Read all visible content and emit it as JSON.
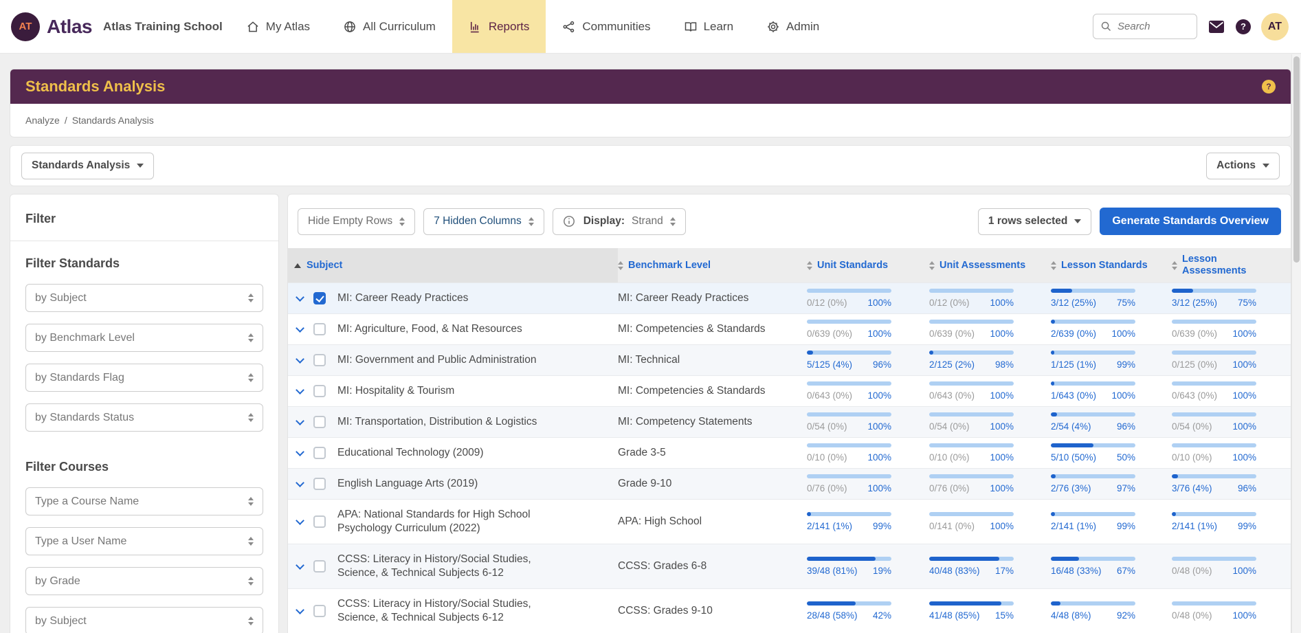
{
  "navbar": {
    "logo_text": "AT",
    "brand": "Atlas",
    "school": "Atlas Training School",
    "items": [
      {
        "label": "My Atlas",
        "icon": "home-icon",
        "active": false
      },
      {
        "label": "All Curriculum",
        "icon": "globe-icon",
        "active": false
      },
      {
        "label": "Reports",
        "icon": "chart-icon",
        "active": true
      },
      {
        "label": "Communities",
        "icon": "network-icon",
        "active": false
      },
      {
        "label": "Learn",
        "icon": "book-icon",
        "active": false
      },
      {
        "label": "Admin",
        "icon": "gear-icon",
        "active": false
      }
    ],
    "search_placeholder": "Search",
    "help_badge": "?",
    "avatar_text": "AT"
  },
  "header": {
    "title": "Standards Analysis",
    "help_icon": "?"
  },
  "breadcrumb": {
    "parts": [
      "Analyze",
      "Standards Analysis"
    ],
    "separator": "/"
  },
  "controls": {
    "report_selector_label": "Standards Analysis",
    "actions_label": "Actions"
  },
  "sidebar": {
    "title": "Filter",
    "sections": [
      {
        "heading": "Filter Standards",
        "filters": [
          "by Subject",
          "by Benchmark Level",
          "by Standards Flag",
          "by Standards Status"
        ]
      },
      {
        "heading": "Filter Courses",
        "filters": [
          "Type a Course Name",
          "Type a User Name",
          "by Grade",
          "by Subject"
        ]
      }
    ]
  },
  "toolbar": {
    "hide_empty_rows_label": "Hide Empty Rows",
    "hidden_columns_label": "7 Hidden Columns",
    "display_label": "Display:",
    "display_value": "Strand",
    "rows_selected_label": "1 rows selected",
    "generate_button_label": "Generate Standards Overview"
  },
  "table": {
    "columns": [
      {
        "label": "Subject",
        "sort": "asc"
      },
      {
        "label": "Benchmark Level",
        "sort": "both"
      },
      {
        "label": "Unit Standards",
        "sort": "both"
      },
      {
        "label": "Unit Assessments",
        "sort": "both"
      },
      {
        "label": "Lesson Standards",
        "sort": "both"
      },
      {
        "label": "Lesson Assessments",
        "sort": "both"
      }
    ],
    "rows": [
      {
        "subject": "MI: Career Ready Practices",
        "benchmark": "MI: Career Ready Practices",
        "checked": true,
        "metrics": [
          {
            "text": "0/12 (0%)",
            "pct": "100%",
            "fill": 0,
            "muted": true
          },
          {
            "text": "0/12 (0%)",
            "pct": "100%",
            "fill": 0,
            "muted": true
          },
          {
            "text": "3/12 (25%)",
            "pct": "75%",
            "fill": 25,
            "muted": false
          },
          {
            "text": "3/12 (25%)",
            "pct": "75%",
            "fill": 25,
            "muted": false
          }
        ]
      },
      {
        "subject": "MI: Agriculture, Food, & Nat Resources",
        "benchmark": "MI: Competencies & Standards",
        "checked": false,
        "metrics": [
          {
            "text": "0/639 (0%)",
            "pct": "100%",
            "fill": 0,
            "muted": true
          },
          {
            "text": "0/639 (0%)",
            "pct": "100%",
            "fill": 0,
            "muted": true
          },
          {
            "text": "2/639 (0%)",
            "pct": "100%",
            "fill": 5,
            "muted": false
          },
          {
            "text": "0/639 (0%)",
            "pct": "100%",
            "fill": 0,
            "muted": true
          }
        ]
      },
      {
        "subject": "MI: Government and Public Administration",
        "benchmark": "MI: Technical",
        "checked": false,
        "metrics": [
          {
            "text": "5/125 (4%)",
            "pct": "96%",
            "fill": 7,
            "muted": false
          },
          {
            "text": "2/125 (2%)",
            "pct": "98%",
            "fill": 5,
            "muted": false
          },
          {
            "text": "1/125 (1%)",
            "pct": "99%",
            "fill": 4,
            "muted": false
          },
          {
            "text": "0/125 (0%)",
            "pct": "100%",
            "fill": 0,
            "muted": true
          }
        ]
      },
      {
        "subject": "MI: Hospitality & Tourism",
        "benchmark": "MI: Competencies & Standards",
        "checked": false,
        "metrics": [
          {
            "text": "0/643 (0%)",
            "pct": "100%",
            "fill": 0,
            "muted": true
          },
          {
            "text": "0/643 (0%)",
            "pct": "100%",
            "fill": 0,
            "muted": true
          },
          {
            "text": "1/643 (0%)",
            "pct": "100%",
            "fill": 4,
            "muted": false
          },
          {
            "text": "0/643 (0%)",
            "pct": "100%",
            "fill": 0,
            "muted": true
          }
        ]
      },
      {
        "subject": "MI: Transportation, Distribution & Logistics",
        "benchmark": "MI: Competency Statements",
        "checked": false,
        "metrics": [
          {
            "text": "0/54 (0%)",
            "pct": "100%",
            "fill": 0,
            "muted": true
          },
          {
            "text": "0/54 (0%)",
            "pct": "100%",
            "fill": 0,
            "muted": true
          },
          {
            "text": "2/54 (4%)",
            "pct": "96%",
            "fill": 7,
            "muted": false
          },
          {
            "text": "0/54 (0%)",
            "pct": "100%",
            "fill": 0,
            "muted": true
          }
        ]
      },
      {
        "subject": "Educational Technology (2009)",
        "benchmark": "Grade 3-5",
        "checked": false,
        "metrics": [
          {
            "text": "0/10 (0%)",
            "pct": "100%",
            "fill": 0,
            "muted": true
          },
          {
            "text": "0/10 (0%)",
            "pct": "100%",
            "fill": 0,
            "muted": true
          },
          {
            "text": "5/10 (50%)",
            "pct": "50%",
            "fill": 50,
            "muted": false
          },
          {
            "text": "0/10 (0%)",
            "pct": "100%",
            "fill": 0,
            "muted": true
          }
        ]
      },
      {
        "subject": "English Language Arts (2019)",
        "benchmark": "Grade 9-10",
        "checked": false,
        "metrics": [
          {
            "text": "0/76 (0%)",
            "pct": "100%",
            "fill": 0,
            "muted": true
          },
          {
            "text": "0/76 (0%)",
            "pct": "100%",
            "fill": 0,
            "muted": true
          },
          {
            "text": "2/76 (3%)",
            "pct": "97%",
            "fill": 6,
            "muted": false
          },
          {
            "text": "3/76 (4%)",
            "pct": "96%",
            "fill": 7,
            "muted": false
          }
        ]
      },
      {
        "subject": "APA: National Standards for High School Psychology Curriculum (2022)",
        "benchmark": "APA: High School",
        "checked": false,
        "metrics": [
          {
            "text": "2/141 (1%)",
            "pct": "99%",
            "fill": 5,
            "muted": false
          },
          {
            "text": "0/141 (0%)",
            "pct": "100%",
            "fill": 0,
            "muted": true
          },
          {
            "text": "2/141 (1%)",
            "pct": "99%",
            "fill": 5,
            "muted": false
          },
          {
            "text": "2/141 (1%)",
            "pct": "99%",
            "fill": 5,
            "muted": false
          }
        ]
      },
      {
        "subject": "CCSS: Literacy in History/Social Studies, Science, & Technical Subjects 6-12",
        "benchmark": "CCSS: Grades 6-8",
        "checked": false,
        "metrics": [
          {
            "text": "39/48 (81%)",
            "pct": "19%",
            "fill": 81,
            "muted": false
          },
          {
            "text": "40/48 (83%)",
            "pct": "17%",
            "fill": 83,
            "muted": false
          },
          {
            "text": "16/48 (33%)",
            "pct": "67%",
            "fill": 33,
            "muted": false
          },
          {
            "text": "0/48 (0%)",
            "pct": "100%",
            "fill": 0,
            "muted": true
          }
        ]
      },
      {
        "subject": "CCSS: Literacy in History/Social Studies, Science, & Technical Subjects 6-12",
        "benchmark": "CCSS: Grades 9-10",
        "checked": false,
        "metrics": [
          {
            "text": "28/48 (58%)",
            "pct": "42%",
            "fill": 58,
            "muted": false
          },
          {
            "text": "41/48 (85%)",
            "pct": "15%",
            "fill": 85,
            "muted": false
          },
          {
            "text": "4/48 (8%)",
            "pct": "92%",
            "fill": 11,
            "muted": false
          },
          {
            "text": "0/48 (0%)",
            "pct": "100%",
            "fill": 0,
            "muted": true
          }
        ]
      }
    ]
  },
  "colors": {
    "accent_blue": "#2269D1",
    "header_purple": "#54284F",
    "title_yellow": "#EFC04A",
    "active_tab_yellow": "#F8E5A4",
    "bar_track": "#AFD0F3",
    "bar_fill": "#1E63CC"
  }
}
